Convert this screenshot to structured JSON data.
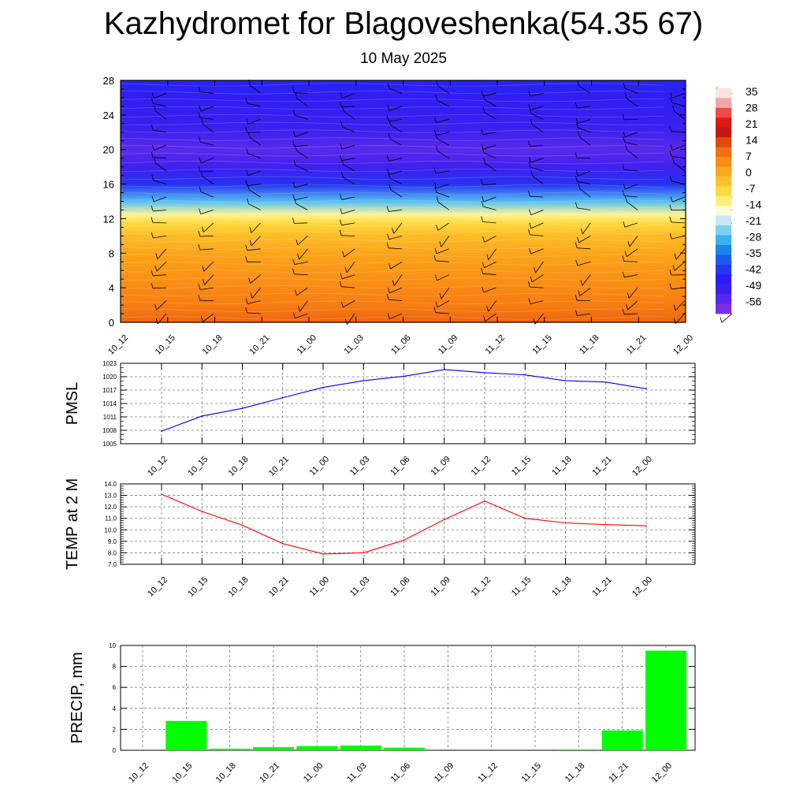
{
  "title": "Kazhydromet for Blagoveshenka(54.35 67)",
  "subtitle": "10 May 2025",
  "colorbar": {
    "labels": [
      "35",
      "28",
      "21",
      "14",
      "7",
      "0",
      "-7",
      "-14",
      "-21",
      "-28",
      "-35",
      "-42",
      "-49",
      "-56"
    ],
    "colors": [
      "#fbe3e3",
      "#f4a6a6",
      "#ec4a4a",
      "#dd1a1a",
      "#c81414",
      "#e04a0e",
      "#f26e10",
      "#fb8c14",
      "#fca91c",
      "#fdc22a",
      "#fedb40",
      "#fff07a",
      "#fdfbd2",
      "#c8e8f8",
      "#7fd0f5",
      "#38b3ee",
      "#1a86e6",
      "#1c5be8",
      "#2438f0",
      "#2a1ef4",
      "#3a20f0",
      "#5a28ec",
      "#7a2fe6"
    ]
  },
  "chart_data": [
    {
      "type": "heatmap",
      "title": "",
      "ylabel": "",
      "yticks": [
        "0",
        "4",
        "8",
        "12",
        "16",
        "20",
        "24",
        "28"
      ],
      "ylim": [
        0,
        28
      ],
      "xticks": [
        "10_12",
        "10_15",
        "10_18",
        "10_21",
        "11_00",
        "11_03",
        "11_06",
        "11_09",
        "11_12",
        "11_15",
        "11_18",
        "11_21",
        "12_00"
      ],
      "levels": [
        0,
        2,
        4,
        6,
        8,
        10,
        11.5,
        12.5,
        14,
        16,
        18,
        20,
        22,
        24,
        26,
        28
      ],
      "values": [
        10,
        7,
        5,
        3,
        1,
        -3,
        -8,
        -14,
        -28,
        -44,
        -52,
        -56,
        -52,
        -50,
        -48,
        -46
      ],
      "shading": "field varies little with time"
    },
    {
      "type": "line",
      "ylabel": "PMSL",
      "yticks": [
        "1005",
        "1008",
        "1011",
        "1014",
        "1017",
        "1020",
        "1023"
      ],
      "ylim": [
        1005,
        1023
      ],
      "grid": true,
      "color": "#0000ff",
      "x": [
        "10_12",
        "10_15",
        "10_18",
        "10_21",
        "11_00",
        "11_03",
        "11_06",
        "11_09",
        "11_12",
        "11_15",
        "11_18",
        "11_21",
        "12_00"
      ],
      "values": [
        1007.8,
        1011.2,
        1012.9,
        1015.3,
        1017.6,
        1019.1,
        1020.1,
        1021.6,
        1020.9,
        1020.4,
        1019.1,
        1018.8,
        1017.3
      ]
    },
    {
      "type": "line",
      "ylabel": "TEMP at 2 M",
      "yticks": [
        "7.0",
        "8.0",
        "9.0",
        "10.0",
        "11.0",
        "12.0",
        "13.0",
        "14.0"
      ],
      "ylim": [
        7.0,
        14.0
      ],
      "grid": true,
      "color": "#ff0000",
      "x": [
        "10_12",
        "10_15",
        "10_18",
        "10_21",
        "11_00",
        "11_03",
        "11_06",
        "11_09",
        "11_12",
        "11_15",
        "11_18",
        "11_21",
        "12_00"
      ],
      "values": [
        13.1,
        11.6,
        10.4,
        8.8,
        7.9,
        8.0,
        9.1,
        10.9,
        12.5,
        11.0,
        10.6,
        10.45,
        10.35
      ]
    },
    {
      "type": "bar",
      "ylabel": "PRECIP, mm",
      "yticks": [
        "0",
        "2",
        "4",
        "6",
        "8",
        "10"
      ],
      "ylim": [
        0,
        10
      ],
      "grid": true,
      "color": "#00ff00",
      "categories": [
        "10_12",
        "10_15",
        "10_18",
        "10_21",
        "11_00",
        "11_03",
        "11_06",
        "11_09",
        "11_12",
        "11_15",
        "11_18",
        "11_21",
        "12_00"
      ],
      "values": [
        0,
        2.8,
        0.15,
        0.3,
        0.4,
        0.45,
        0.25,
        0,
        0,
        0,
        0.08,
        1.9,
        9.5
      ]
    }
  ]
}
